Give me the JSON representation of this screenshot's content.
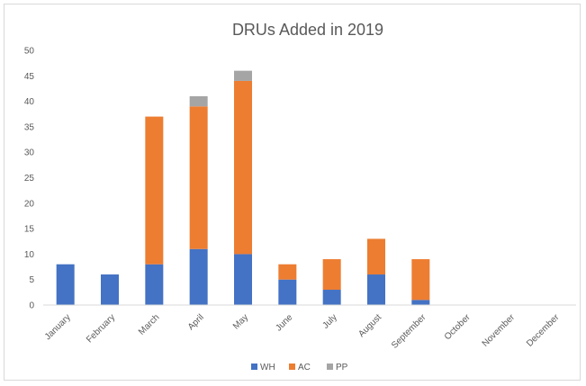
{
  "chart_data": {
    "type": "bar",
    "stacked": true,
    "title": "DRUs Added in 2019",
    "xlabel": "",
    "ylabel": "",
    "ylim": [
      0,
      50
    ],
    "yticks": [
      0,
      5,
      10,
      15,
      20,
      25,
      30,
      35,
      40,
      45,
      50
    ],
    "grid": false,
    "legend_position": "bottom",
    "categories": [
      "January",
      "February",
      "March",
      "April",
      "May",
      "June",
      "July",
      "August",
      "September",
      "October",
      "November",
      "December"
    ],
    "series": [
      {
        "name": "WH",
        "color": "#4472c4",
        "values": [
          8,
          6,
          8,
          11,
          10,
          5,
          3,
          6,
          1,
          0,
          0,
          0
        ]
      },
      {
        "name": "AC",
        "color": "#ed7d31",
        "values": [
          0,
          0,
          29,
          28,
          34,
          3,
          6,
          7,
          8,
          0,
          0,
          0
        ]
      },
      {
        "name": "PP",
        "color": "#a5a5a5",
        "values": [
          0,
          0,
          0,
          2,
          2,
          0,
          0,
          0,
          0,
          0,
          0,
          0
        ]
      }
    ]
  }
}
